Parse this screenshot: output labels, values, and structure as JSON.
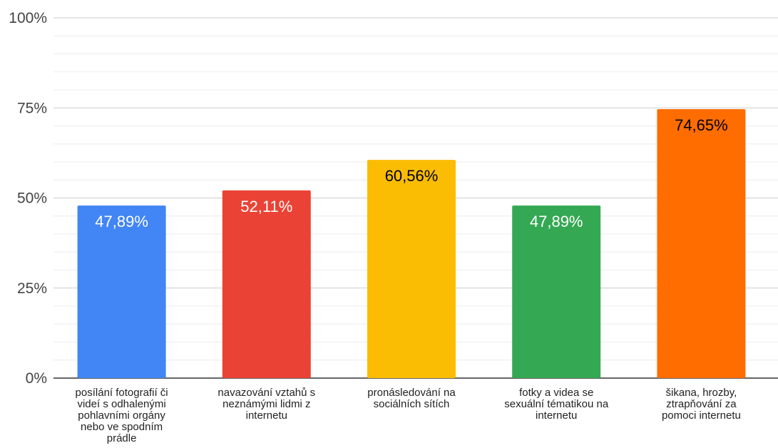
{
  "chart_data": {
    "type": "bar",
    "categories": [
      [
        "posílání fotografií či",
        "videí s odhalenými",
        "pohlavními orgány",
        "nebo ve spodním",
        "prádle"
      ],
      [
        "navazování vztahů s",
        "neznámými lidmi z",
        "internetu"
      ],
      [
        "pronásledování na",
        "sociálních sítích"
      ],
      [
        "fotky a videa se",
        "sexuální tématikou na",
        "internetu"
      ],
      [
        "šikana, hrozby,",
        "ztrapňování za",
        "pomoci internetu"
      ]
    ],
    "values": [
      47.89,
      52.11,
      60.56,
      47.89,
      74.65
    ],
    "data_labels": [
      "47,89%",
      "52,11%",
      "60,56%",
      "47,89%",
      "74,65%"
    ],
    "colors": [
      "#4285f4",
      "#ea4335",
      "#fbbc04",
      "#34a853",
      "#ff6d01"
    ],
    "label_colors": [
      "#ffffff",
      "#ffffff",
      "#000000",
      "#ffffff",
      "#000000"
    ],
    "yticks": [
      0,
      25,
      50,
      75,
      100
    ],
    "ytick_labels": [
      "0%",
      "25%",
      "50%",
      "75%",
      "100%"
    ],
    "ylim": [
      0,
      100
    ],
    "minor_gridlines_per_major": 5,
    "grid": true,
    "title": "",
    "xlabel": "",
    "ylabel": ""
  }
}
